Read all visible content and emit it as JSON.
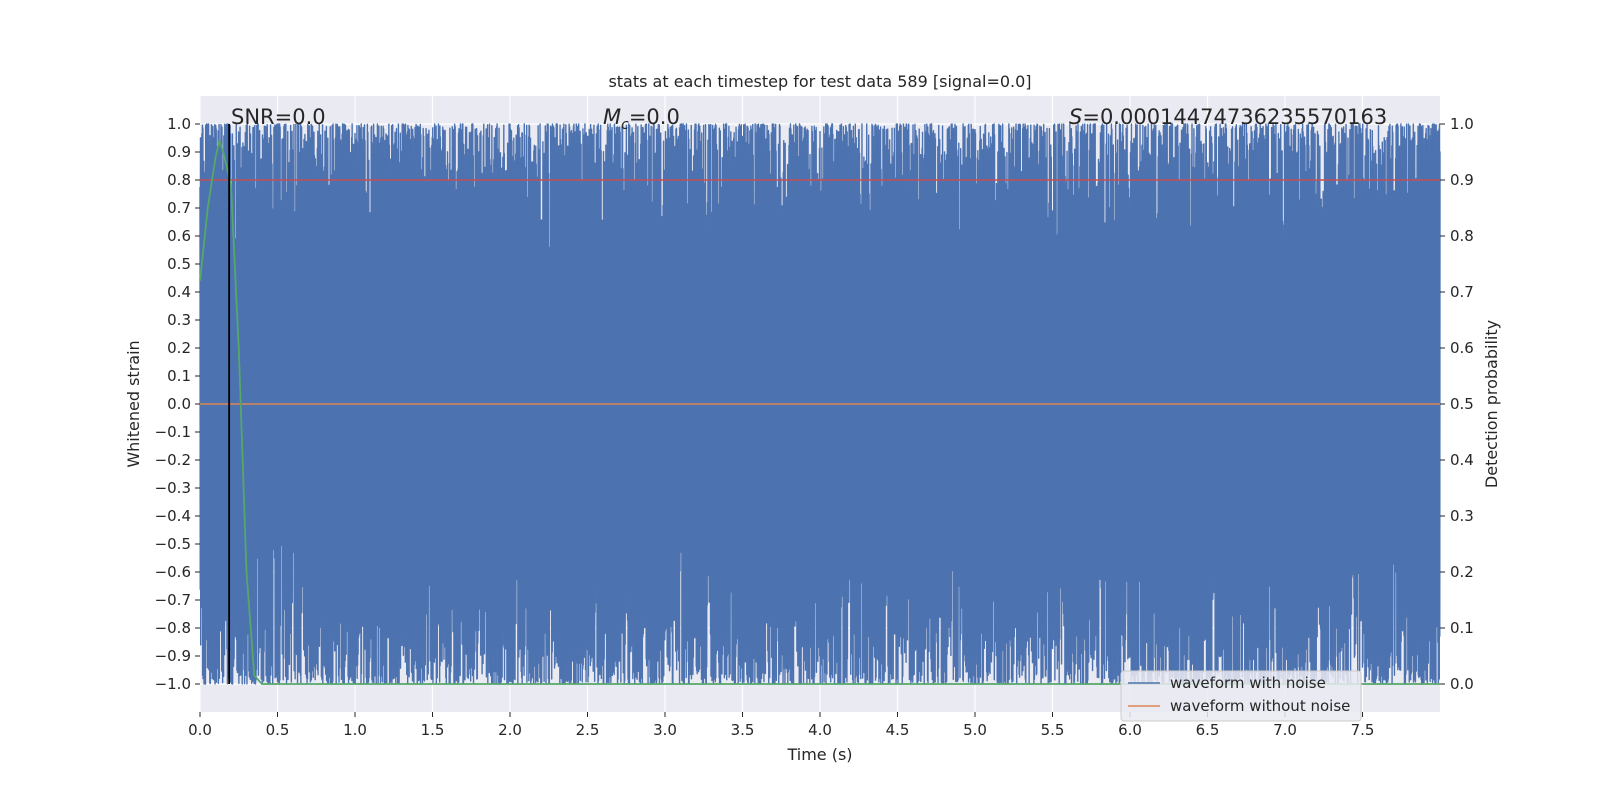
{
  "chart_data": {
    "type": "line",
    "title": "stats at each timestep for test data 589 [signal=0.0]",
    "xlabel": "Time (s)",
    "ylabel": "Whitened strain",
    "y2label": "Detection probability",
    "xlim": [
      0.0,
      8.0
    ],
    "ylim": [
      -1.1,
      1.1
    ],
    "y2lim": [
      -0.05,
      1.05
    ],
    "xticks": [
      0.0,
      0.5,
      1.0,
      1.5,
      2.0,
      2.5,
      3.0,
      3.5,
      4.0,
      4.5,
      5.0,
      5.5,
      6.0,
      6.5,
      7.0,
      7.5
    ],
    "yticks": [
      -1.0,
      -0.9,
      -0.8,
      -0.7,
      -0.6,
      -0.5,
      -0.4,
      -0.3,
      -0.2,
      -0.1,
      0.0,
      0.1,
      0.2,
      0.3,
      0.4,
      0.5,
      0.6,
      0.7,
      0.8,
      0.9,
      1.0
    ],
    "y2ticks": [
      0.0,
      0.1,
      0.2,
      0.3,
      0.4,
      0.5,
      0.6,
      0.7,
      0.8,
      0.9,
      1.0
    ],
    "grid": true,
    "legend_position": "lower-right",
    "background_color": "#eaeaf2",
    "annotations": {
      "snr": "SNR=0.0",
      "mc_symbol": "M",
      "mc_subscript": "c",
      "mc_value": "=0.0",
      "s_symbol": "S",
      "s_value": "=0.00014474736235570163"
    },
    "series": [
      {
        "name": "waveform with noise",
        "axis": "left",
        "color": "#4c72b0",
        "description": "dense whitened noise oscillating between about -1.0 and 1.0 over the full 0 to 8 s window",
        "x_range": [
          0.0,
          8.0
        ],
        "y_range": [
          -1.0,
          1.0
        ]
      },
      {
        "name": "waveform without noise",
        "axis": "left",
        "color": "#dd8452",
        "x": [
          0.0,
          8.0
        ],
        "y": [
          0.0,
          0.0
        ]
      },
      {
        "axis": "right",
        "color": "#55a868",
        "x": [
          0.0,
          0.05,
          0.1,
          0.125,
          0.15,
          0.2,
          0.25,
          0.3,
          0.35,
          0.4,
          1.0,
          2.0,
          3.0,
          4.0,
          5.0,
          6.0,
          7.0,
          8.0
        ],
        "y": [
          0.72,
          0.85,
          0.94,
          0.97,
          0.95,
          0.89,
          0.6,
          0.2,
          0.015,
          0.0,
          0.0,
          0.0,
          0.0,
          0.0,
          0.0,
          0.0,
          0.0,
          0.0
        ]
      },
      {
        "axis": "right",
        "color": "#c44e52",
        "x": [
          0.0,
          8.0
        ],
        "y": [
          0.9,
          0.9
        ]
      }
    ],
    "vlines": [
      {
        "x": 0.188,
        "ymin": -1.0,
        "ymax": 1.0,
        "color": "#000000"
      }
    ]
  }
}
